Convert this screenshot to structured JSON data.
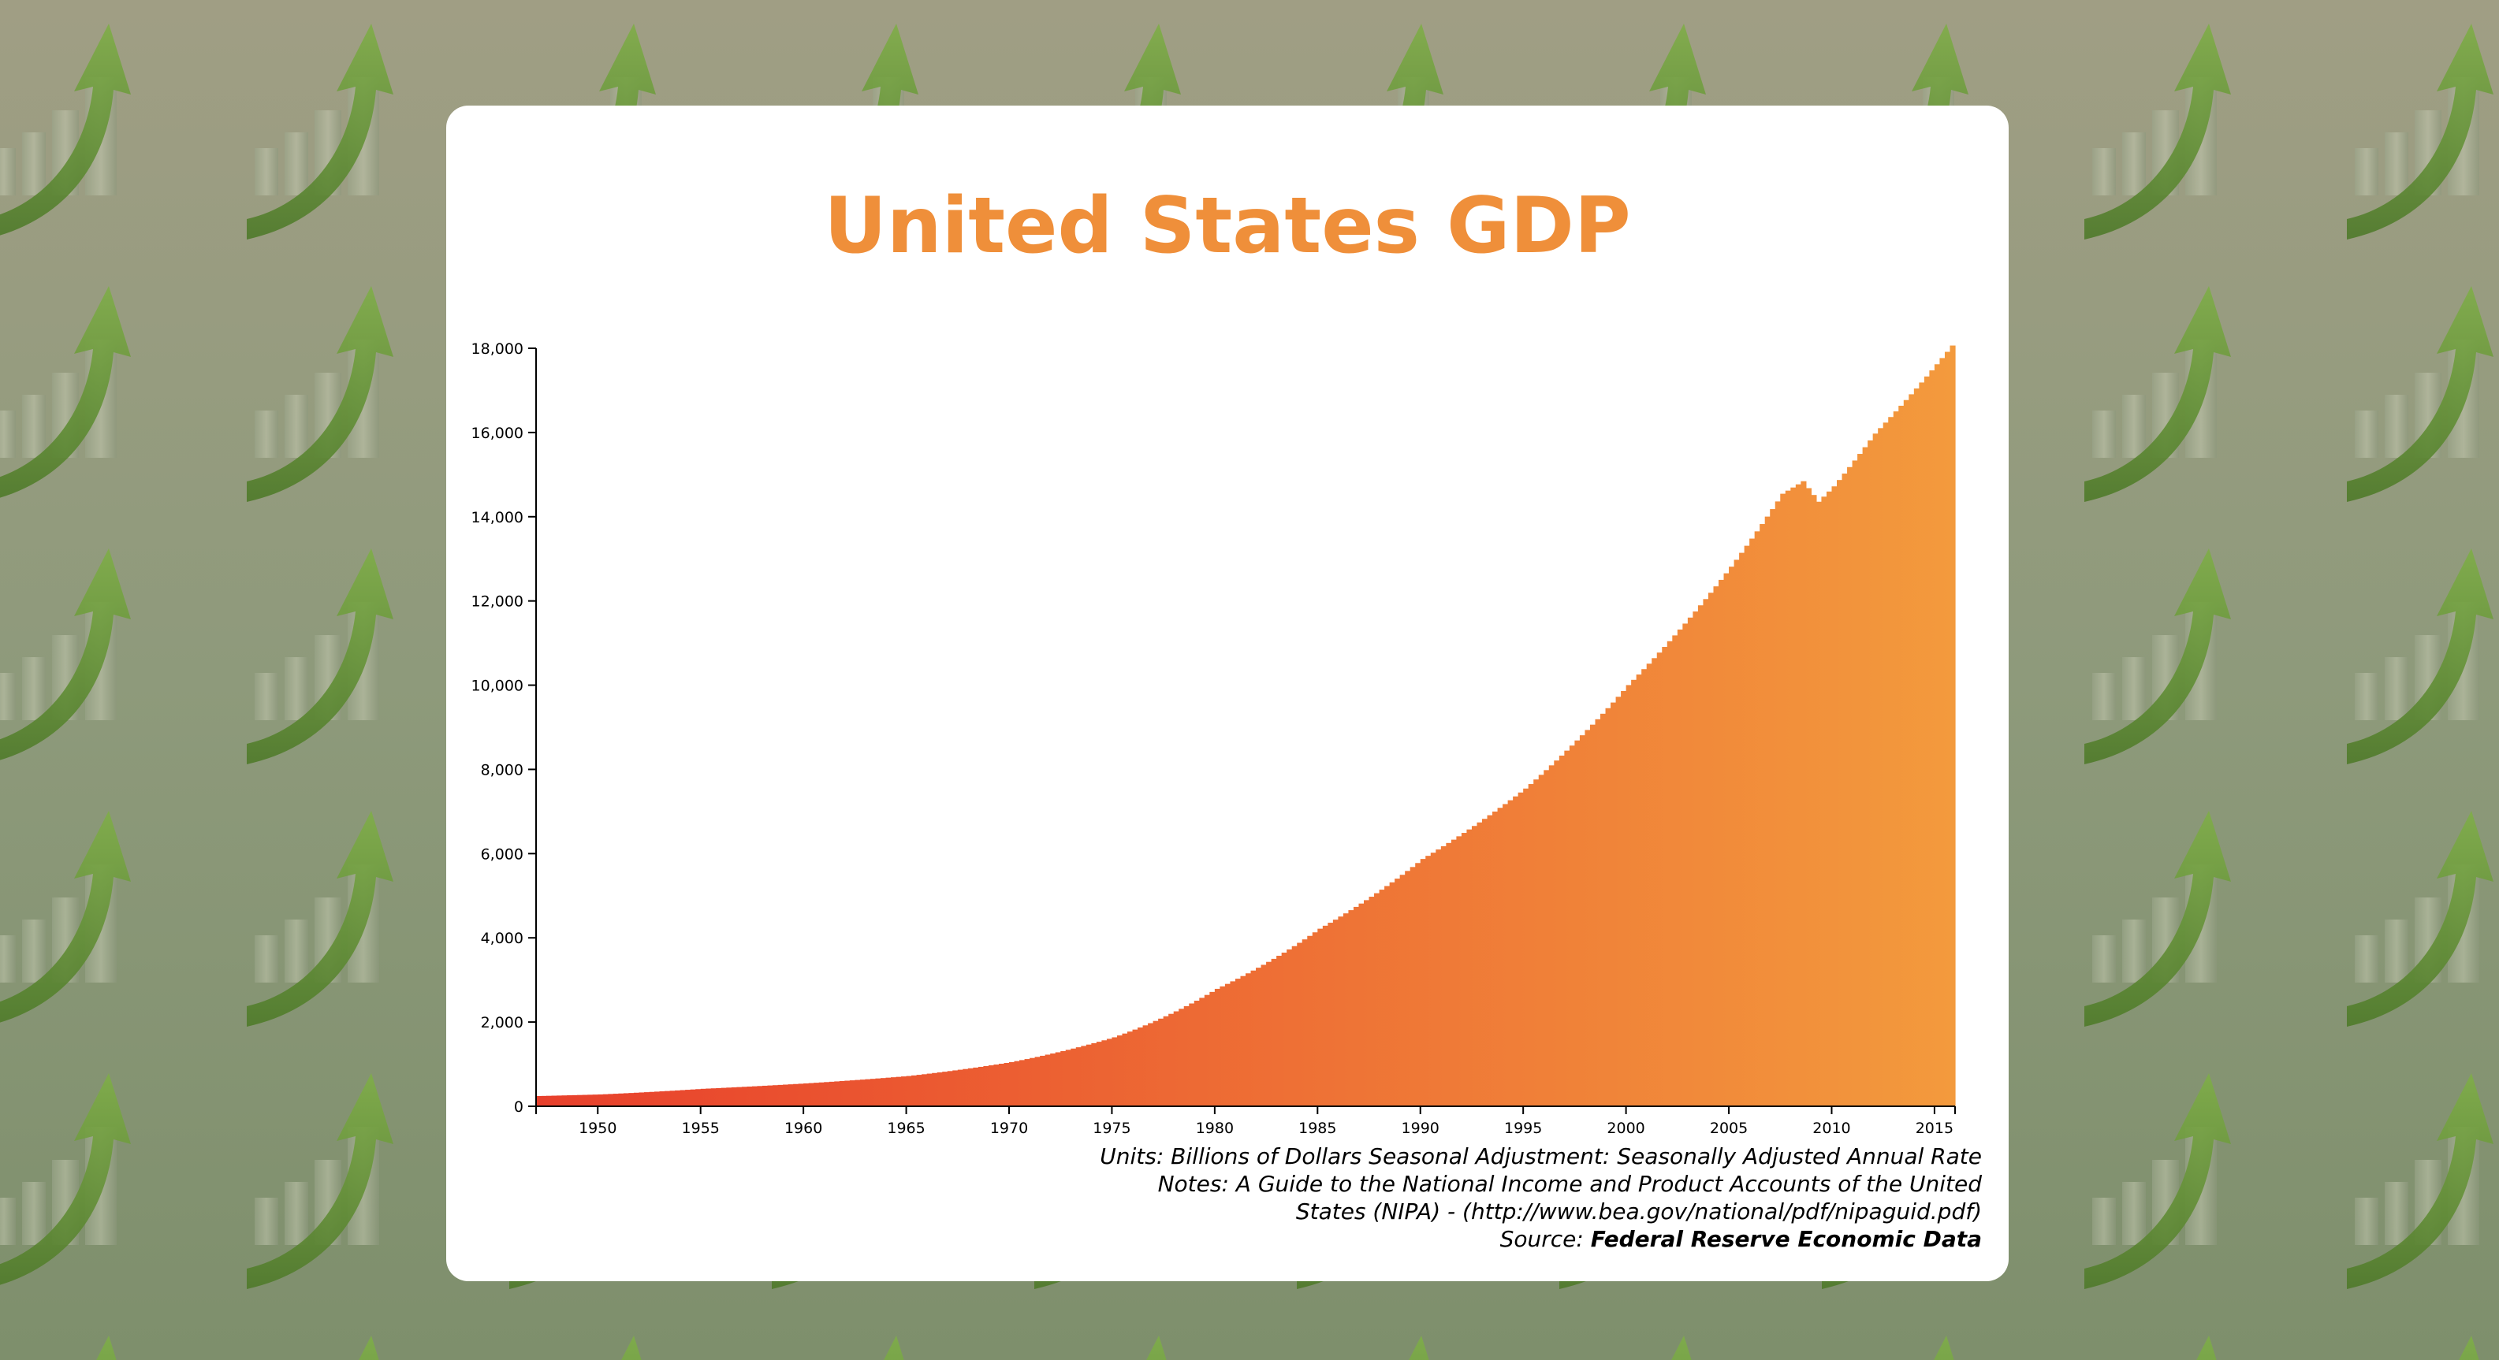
{
  "background": {
    "colors": {
      "top": "#a09e84",
      "bottom": "#7e8f6c",
      "arrow": "#6f9a3e"
    },
    "motif_icon": "growth-arrow-bar-chart-icon"
  },
  "chart_data": {
    "type": "bar",
    "title": "United States GDP",
    "xlabel": "",
    "ylabel": "",
    "frequency": "quarterly",
    "x_start": "1947-Q1",
    "x_end": "2015-Q4",
    "xlim": [
      1947,
      2016
    ],
    "ylim": [
      0,
      18000
    ],
    "y_ticks": [
      "0",
      "2,000",
      "4,000",
      "6,000",
      "8,000",
      "10,000",
      "12,000",
      "14,000",
      "16,000",
      "18,000"
    ],
    "y_tick_values": [
      0,
      2000,
      4000,
      6000,
      8000,
      10000,
      12000,
      14000,
      16000,
      18000
    ],
    "x_ticks": [
      "1950",
      "1955",
      "1960",
      "1965",
      "1970",
      "1975",
      "1980",
      "1985",
      "1990",
      "1995",
      "2000",
      "2005",
      "2010",
      "2015"
    ],
    "x_tick_values": [
      1950,
      1955,
      1960,
      1965,
      1970,
      1975,
      1980,
      1985,
      1990,
      1995,
      2000,
      2005,
      2010,
      2015
    ],
    "grid": false,
    "legend": "none",
    "color_gradient": {
      "start": "#e8402c",
      "end": "#f39a3d"
    },
    "anchors": [
      {
        "date": 1947.0,
        "value": 243
      },
      {
        "date": 1950.0,
        "value": 281
      },
      {
        "date": 1955.0,
        "value": 415
      },
      {
        "date": 1960.0,
        "value": 543
      },
      {
        "date": 1965.0,
        "value": 719
      },
      {
        "date": 1970.0,
        "value": 1049
      },
      {
        "date": 1975.0,
        "value": 1638
      },
      {
        "date": 1980.0,
        "value": 2789
      },
      {
        "date": 1985.0,
        "value": 4217
      },
      {
        "date": 1990.0,
        "value": 5873
      },
      {
        "date": 1995.0,
        "value": 7545
      },
      {
        "date": 2000.0,
        "value": 10002
      },
      {
        "date": 2005.0,
        "value": 12814
      },
      {
        "date": 2007.5,
        "value": 14546
      },
      {
        "date": 2008.5,
        "value": 14843
      },
      {
        "date": 2009.25,
        "value": 14356
      },
      {
        "date": 2010.0,
        "value": 14721
      },
      {
        "date": 2012.0,
        "value": 15974
      },
      {
        "date": 2014.0,
        "value": 17045
      },
      {
        "date": 2015.75,
        "value": 18065
      }
    ]
  },
  "notes": {
    "units": "Units: Billions of Dollars Seasonal Adjustment: Seasonally Adjusted Annual Rate",
    "notes_line1": "Notes: A Guide to the National Income and Product Accounts of the United",
    "notes_line2": "States (NIPA) - (http://www.bea.gov/national/pdf/nipaguid.pdf)",
    "source_label": "Source:",
    "source_name": "Federal Reserve Economic Data"
  }
}
